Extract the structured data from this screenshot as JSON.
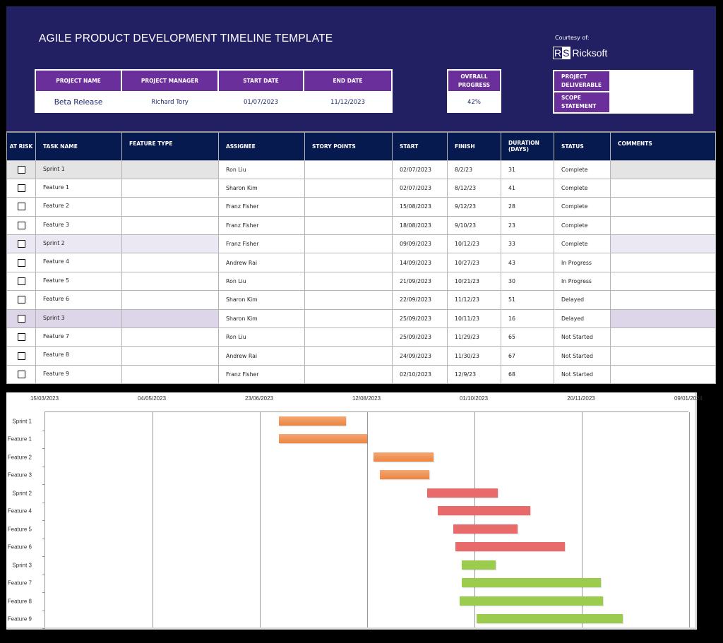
{
  "header": {
    "title": "AGILE PRODUCT DEVELOPMENT TIMELINE TEMPLATE",
    "courtesy": "Courtesy of:",
    "logo_mark_r": "R",
    "logo_mark_s": "S",
    "logo_text": "Ricksoft",
    "colors": {
      "background": "#231f63",
      "label_bg": "#6b2f9b",
      "table_header_bg": "#071a4f"
    }
  },
  "project": {
    "labels": {
      "name": "PROJECT NAME",
      "manager": "PROJECT MANAGER",
      "start": "START DATE",
      "end": "END DATE",
      "progress": "OVERALL PROGRESS"
    },
    "name": "Beta Release",
    "manager": "Richard Tory",
    "start": "01/07/2023",
    "end": "11/12/2023",
    "progress": "42%"
  },
  "side": {
    "deliverable_label": "PROJECT DELIVERABLE",
    "deliverable_value": "",
    "scope_label": "SCOPE STATEMENT",
    "scope_value": ""
  },
  "table": {
    "columns": [
      "AT RISK",
      "TASK NAME",
      "FEATURE TYPE",
      "ASSIGNEE",
      "STORY POINTS",
      "START",
      "FINISH",
      "DURATION (DAYS)",
      "STATUS",
      "COMMENTS"
    ],
    "rows": [
      {
        "task": "Sprint 1",
        "feature_type": "",
        "assignee": "Ron Liu",
        "story_points": "",
        "start": "02/07/2023",
        "finish": "8/2/23",
        "duration": "31",
        "status": "Complete",
        "comments": "",
        "at_risk": false
      },
      {
        "task": "Feature 1",
        "feature_type": "",
        "assignee": "Sharon Kim",
        "story_points": "",
        "start": "02/07/2023",
        "finish": "8/12/23",
        "duration": "41",
        "status": "Complete",
        "comments": "",
        "at_risk": false
      },
      {
        "task": "Feature 2",
        "feature_type": "",
        "assignee": "Franz Fisher",
        "story_points": "",
        "start": "15/08/2023",
        "finish": "9/12/23",
        "duration": "28",
        "status": "Complete",
        "comments": "",
        "at_risk": false
      },
      {
        "task": "Feature 3",
        "feature_type": "",
        "assignee": "Franz Fisher",
        "story_points": "",
        "start": "18/08/2023",
        "finish": "9/10/23",
        "duration": "23",
        "status": "Complete",
        "comments": "",
        "at_risk": false
      },
      {
        "task": "Sprint 2",
        "feature_type": "",
        "assignee": "Franz Fisher",
        "story_points": "",
        "start": "09/09/2023",
        "finish": "10/12/23",
        "duration": "33",
        "status": "Complete",
        "comments": "",
        "at_risk": false
      },
      {
        "task": "Feature 4",
        "feature_type": "",
        "assignee": "Andrew Rai",
        "story_points": "",
        "start": "14/09/2023",
        "finish": "10/27/23",
        "duration": "43",
        "status": "In Progress",
        "comments": "",
        "at_risk": false
      },
      {
        "task": "Feature 5",
        "feature_type": "",
        "assignee": "Ron Liu",
        "story_points": "",
        "start": "21/09/2023",
        "finish": "10/21/23",
        "duration": "30",
        "status": "In Progress",
        "comments": "",
        "at_risk": false
      },
      {
        "task": "Feature 6",
        "feature_type": "",
        "assignee": "Sharon Kim",
        "story_points": "",
        "start": "22/09/2023",
        "finish": "11/12/23",
        "duration": "51",
        "status": "Delayed",
        "comments": "",
        "at_risk": false
      },
      {
        "task": "Sprint 3",
        "feature_type": "",
        "assignee": "Sharon Kim",
        "story_points": "",
        "start": "25/09/2023",
        "finish": "10/11/23",
        "duration": "16",
        "status": "Delayed",
        "comments": "",
        "at_risk": false
      },
      {
        "task": "Feature 7",
        "feature_type": "",
        "assignee": "Ron Liu",
        "story_points": "",
        "start": "25/09/2023",
        "finish": "11/29/23",
        "duration": "65",
        "status": "Not Started",
        "comments": "",
        "at_risk": false
      },
      {
        "task": "Feature 8",
        "feature_type": "",
        "assignee": "Andrew Rai",
        "story_points": "",
        "start": "24/09/2023",
        "finish": "11/30/23",
        "duration": "67",
        "status": "Not Started",
        "comments": "",
        "at_risk": false
      },
      {
        "task": "Feature 9",
        "feature_type": "",
        "assignee": "Franz Fisher",
        "story_points": "",
        "start": "02/10/2023",
        "finish": "12/9/23",
        "duration": "68",
        "status": "Not Started",
        "comments": "",
        "at_risk": false
      }
    ]
  },
  "chart_data": {
    "type": "bar",
    "orientation": "horizontal",
    "subtype": "gantt",
    "title": "",
    "xlabel": "",
    "ylabel": "",
    "x_axis_position": "top",
    "x_ticks": [
      "15/03/2023",
      "04/05/2023",
      "23/06/2023",
      "12/08/2023",
      "01/10/2023",
      "20/11/2023",
      "09/01/2024"
    ],
    "xlim": [
      "15/03/2023",
      "09/01/2024"
    ],
    "x_tick_interval_days": 50,
    "grid": "vertical",
    "legend": "none",
    "categories": [
      "Sprint 1",
      "Feature 1",
      "Feature 2",
      "Feature 3",
      "Sprint 2",
      "Feature 4",
      "Feature 5",
      "Feature 6",
      "Sprint 3",
      "Feature 7",
      "Feature 8",
      "Feature 9"
    ],
    "start_dates": [
      "02/07/2023",
      "02/07/2023",
      "15/08/2023",
      "18/08/2023",
      "09/09/2023",
      "14/09/2023",
      "21/09/2023",
      "22/09/2023",
      "25/09/2023",
      "25/09/2023",
      "24/09/2023",
      "02/10/2023"
    ],
    "start_offset_days": [
      109,
      109,
      153,
      156,
      178,
      183,
      190,
      191,
      194,
      194,
      193,
      201
    ],
    "durations": [
      31,
      41,
      28,
      23,
      33,
      43,
      30,
      51,
      16,
      65,
      67,
      68
    ],
    "colors": [
      "#ee8f52",
      "#ee8f52",
      "#ee8f52",
      "#ee8f52",
      "#e86a6a",
      "#e86a6a",
      "#e86a6a",
      "#e86a6a",
      "#9ccc4d",
      "#9ccc4d",
      "#9ccc4d",
      "#9ccc4d"
    ],
    "total_days": 300
  }
}
